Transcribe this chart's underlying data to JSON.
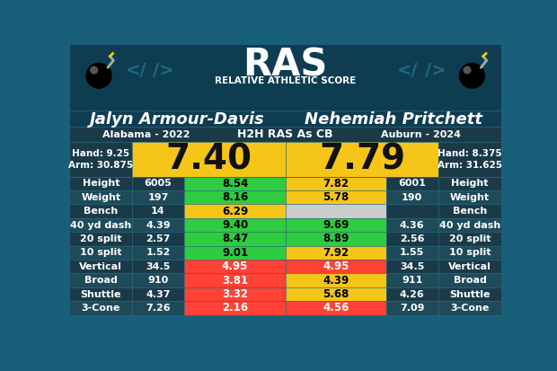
{
  "player1_name": "Jalyn Armour-Davis",
  "player2_name": "Nehemiah Pritchett",
  "player1_school": "Alabama - 2022",
  "player2_school": "Auburn - 2024",
  "h2h_label": "H2H RAS As CB",
  "player1_ras": "7.40",
  "player2_ras": "7.79",
  "player1_hand": "Hand: 9.25",
  "player1_arm": "Arm: 30.875",
  "player2_hand": "Hand: 8.375",
  "player2_arm": "Arm: 31.625",
  "bg_color": "#1a5f7a",
  "header_bg": "#0d3d52",
  "ras_yellow": "#f5c518",
  "row_dark": "#1a3a4a",
  "row_medium": "#1e4a5a",
  "metrics": [
    "Height",
    "Weight",
    "Bench",
    "40 yd dash",
    "20 split",
    "10 split",
    "Vertical",
    "Broad",
    "Shuttle",
    "3-Cone"
  ],
  "p1_values": [
    "6005",
    "197",
    "14",
    "4.39",
    "2.57",
    "1.52",
    "34.5",
    "910",
    "4.37",
    "7.26"
  ],
  "p2_values": [
    "6001",
    "190",
    "",
    "4.36",
    "2.56",
    "1.55",
    "34.5",
    "911",
    "4.26",
    "7.09"
  ],
  "p1_scores": [
    "8.54",
    "8.16",
    "6.29",
    "9.40",
    "8.47",
    "9.01",
    "4.95",
    "3.81",
    "3.32",
    "2.16"
  ],
  "p2_scores": [
    "7.82",
    "5.78",
    "",
    "9.69",
    "8.89",
    "7.92",
    "4.95",
    "4.39",
    "5.68",
    "4.56"
  ],
  "p1_colors": [
    "#2ecc40",
    "#2ecc40",
    "#f5c518",
    "#2ecc40",
    "#2ecc40",
    "#2ecc40",
    "#ff4136",
    "#ff4136",
    "#ff4136",
    "#ff4136"
  ],
  "p2_colors": [
    "#f5c518",
    "#f5c518",
    "#cccccc",
    "#2ecc40",
    "#2ecc40",
    "#f5c518",
    "#ff4136",
    "#f5c518",
    "#f5c518",
    "#ff4136"
  ],
  "light_text_colors": [
    "#f5c518",
    "#cccccc",
    "#2ecc40"
  ],
  "divider_color": "#2a6a7a",
  "header_dark": "#0e3d52",
  "name_row_bg": "#0e3d52",
  "school_row_bg": "#1a3a4a"
}
